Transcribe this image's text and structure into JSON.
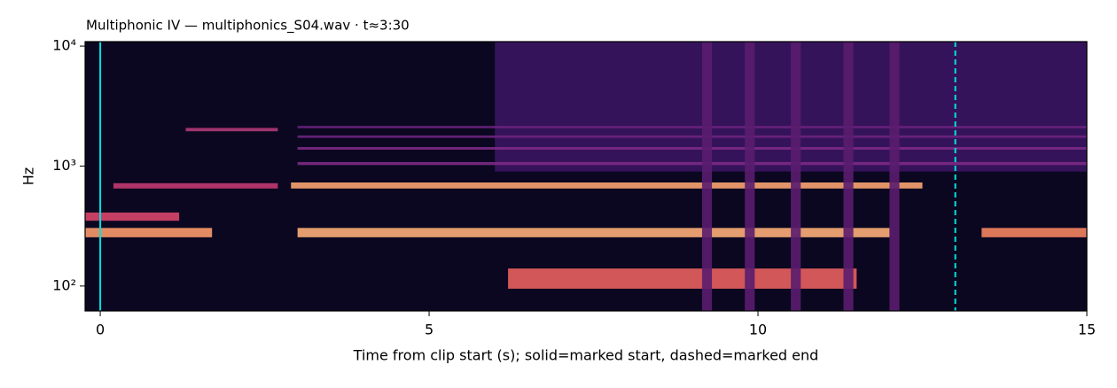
{
  "chart_data": {
    "type": "spectrogram",
    "title": "Multiphonic IV  —  multiphonics_S04.wav · t≈3:30",
    "xlabel": "Time from clip start (s); solid=marked start, dashed=marked end",
    "ylabel": "Hz",
    "xlim": [
      -0.23,
      15
    ],
    "xticks": [
      0,
      5,
      10,
      15
    ],
    "ylim": [
      62,
      10900
    ],
    "yscale": "log",
    "yticks": [
      {
        "value": 100,
        "label": "10²"
      },
      {
        "value": 1000,
        "label": "10³"
      },
      {
        "value": 10000,
        "label": "10⁴"
      }
    ],
    "background": "#0b0720",
    "tracks": [
      {
        "x": [
          6.0,
          15
        ],
        "y": [
          900,
          10900
        ],
        "color": "#3a1560"
      },
      {
        "x": [
          6.2,
          11.5
        ],
        "y": [
          95,
          140
        ],
        "color": "#e8605e"
      },
      {
        "x": [
          -0.23,
          1.2
        ],
        "y": [
          350,
          410
        ],
        "color": "#d8466a"
      },
      {
        "x": [
          -0.23,
          1.7
        ],
        "y": [
          255,
          305
        ],
        "color": "#fb9b6a"
      },
      {
        "x": [
          3.0,
          12.0
        ],
        "y": [
          255,
          305
        ],
        "color": "#fcae78"
      },
      {
        "x": [
          13.4,
          15
        ],
        "y": [
          255,
          305
        ],
        "color": "#f4845f"
      },
      {
        "x": [
          0.2,
          2.7
        ],
        "y": [
          650,
          720
        ],
        "color": "#c13a70"
      },
      {
        "x": [
          2.9,
          12.5
        ],
        "y": [
          650,
          730
        ],
        "color": "#f9a470"
      },
      {
        "x": [
          1.3,
          2.7
        ],
        "y": [
          1950,
          2080
        ],
        "color": "#b03a78"
      },
      {
        "x": [
          3.0,
          15
        ],
        "y": [
          1020,
          1080
        ],
        "color": "#7d2a85"
      },
      {
        "x": [
          3.0,
          15
        ],
        "y": [
          1370,
          1440
        ],
        "color": "#7d2a85"
      },
      {
        "x": [
          3.0,
          15
        ],
        "y": [
          1720,
          1800
        ],
        "color": "#6d2480"
      },
      {
        "x": [
          3.0,
          15
        ],
        "y": [
          2070,
          2160
        ],
        "color": "#6d2480"
      },
      {
        "x": [
          9.15,
          9.3
        ],
        "y": [
          62,
          10900
        ],
        "color": "#5a1d6e"
      },
      {
        "x": [
          9.8,
          9.95
        ],
        "y": [
          62,
          10900
        ],
        "color": "#5a1d6e"
      },
      {
        "x": [
          10.5,
          10.65
        ],
        "y": [
          62,
          10900
        ],
        "color": "#5a1d6e"
      },
      {
        "x": [
          11.3,
          11.45
        ],
        "y": [
          62,
          10900
        ],
        "color": "#5a1d6e"
      },
      {
        "x": [
          12.0,
          12.15
        ],
        "y": [
          62,
          10900
        ],
        "color": "#5a1d6e"
      }
    ],
    "markers": [
      {
        "x": 0,
        "style": "solid",
        "color": "#00e0e0"
      },
      {
        "x": 13,
        "style": "dashed",
        "color": "#00e0e0"
      }
    ]
  }
}
